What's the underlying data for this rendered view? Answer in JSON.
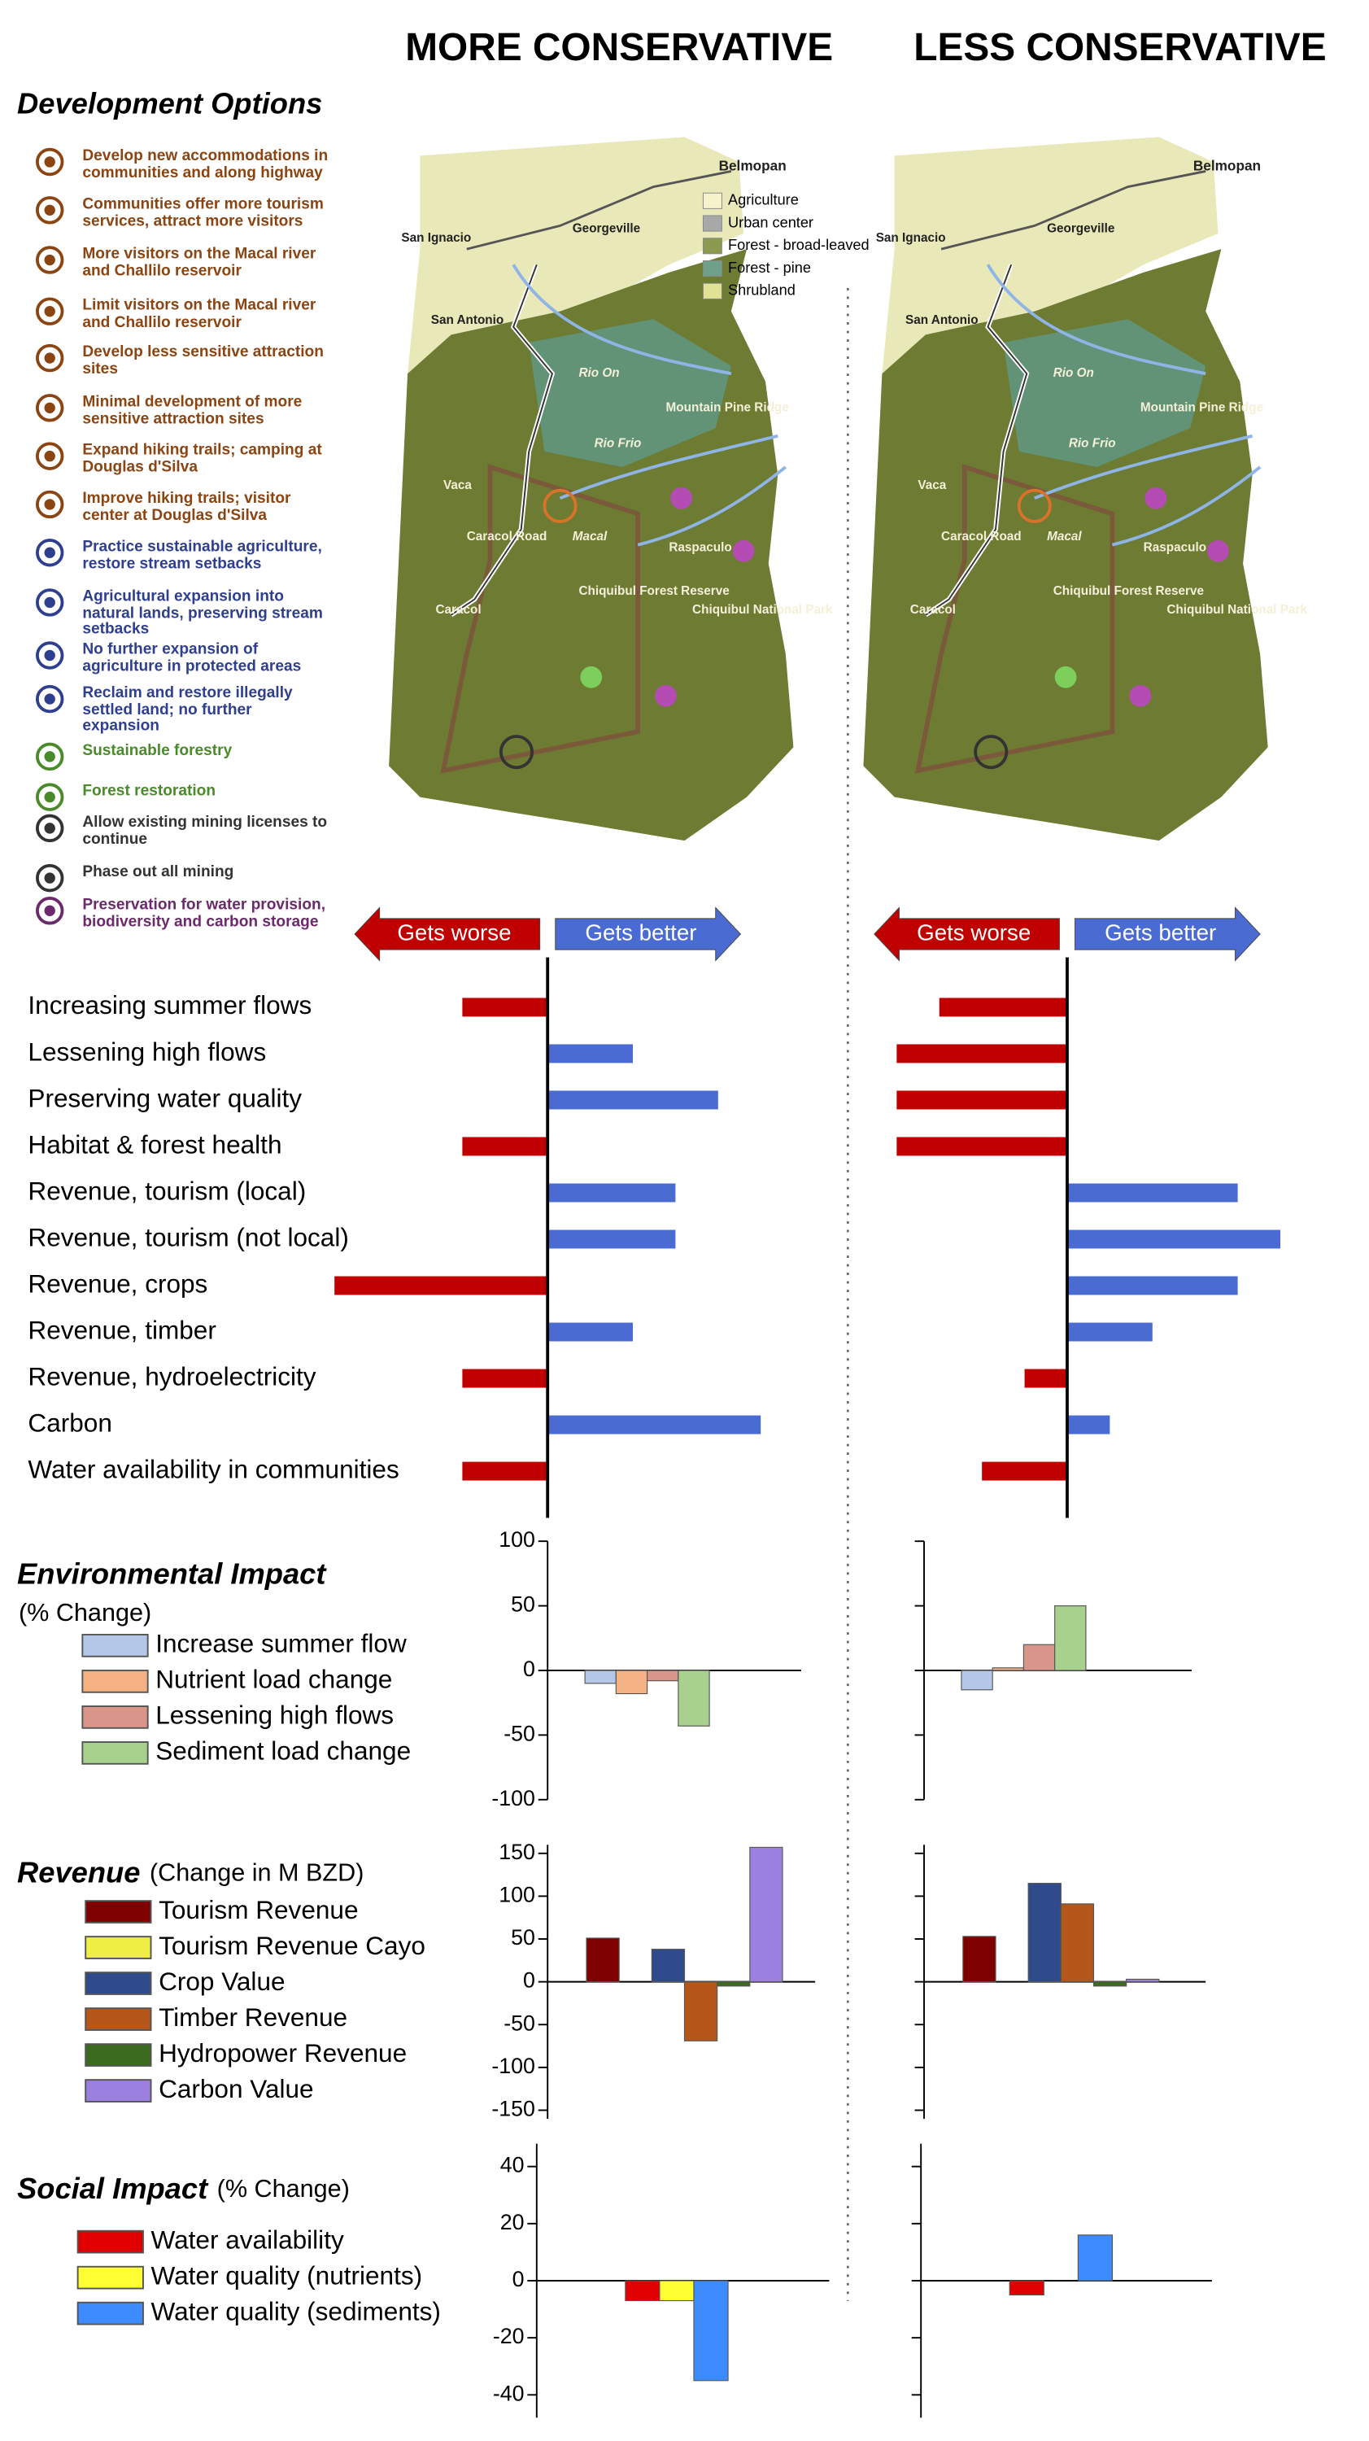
{
  "headers": {
    "more": "MORE CONSERVATIVE",
    "less": "LESS CONSERVATIVE"
  },
  "development_options": {
    "title": "Development Options",
    "items": [
      {
        "label": "Develop new accommodations in communities and along highway",
        "color": "#8b4513"
      },
      {
        "label": "Communities offer more tourism services, attract more visitors",
        "color": "#8b4513"
      },
      {
        "label": "More visitors on the Macal river and Challilo reservoir",
        "color": "#8b4513"
      },
      {
        "label": "Limit visitors on the Macal river and Challilo reservoir",
        "color": "#8b4513"
      },
      {
        "label": "Develop less sensitive attraction sites",
        "color": "#8b4513"
      },
      {
        "label": "Minimal development of more sensitive attraction sites",
        "color": "#8b4513"
      },
      {
        "label": "Expand hiking trails; camping at Douglas d'Silva",
        "color": "#8b4513"
      },
      {
        "label": "Improve hiking trails; visitor center at Douglas d'Silva",
        "color": "#8b4513"
      },
      {
        "label": "Practice sustainable agriculture, restore stream setbacks",
        "color": "#2f3f8f"
      },
      {
        "label": "Agricultural expansion into natural lands, preserving stream setbacks",
        "color": "#2f3f8f"
      },
      {
        "label": "No further expansion of agriculture in protected areas",
        "color": "#2f3f8f"
      },
      {
        "label": "Reclaim and restore illegally settled land; no further expansion",
        "color": "#2f3f8f"
      },
      {
        "label": "Sustainable forestry",
        "color": "#4a8a2a"
      },
      {
        "label": "Forest restoration",
        "color": "#4a8a2a"
      },
      {
        "label": "Allow existing mining licenses to continue",
        "color": "#333333"
      },
      {
        "label": "Phase out all mining",
        "color": "#333333"
      },
      {
        "label": "Preservation for water provision, biodiversity and carbon storage",
        "color": "#6b2a6b"
      }
    ]
  },
  "maps": {
    "place_labels": [
      "Belmopan",
      "San Ignacio",
      "Georgeville",
      "San Antonio",
      "Mountain Pine Ridge",
      "Vaca",
      "Caracol Road",
      "Caracol",
      "Chiquibul Forest Reserve",
      "Chiquibul National Park",
      "Raspaculo",
      "Macal",
      "Rio On",
      "Rio Frio"
    ],
    "land_cover": [
      {
        "label": "Agriculture",
        "color": "#f6f2cc"
      },
      {
        "label": "Urban center",
        "color": "#a8a8a8"
      },
      {
        "label": "Forest - broad-leaved",
        "color": "#8a9a4e"
      },
      {
        "label": "Forest - pine",
        "color": "#6fa08a"
      },
      {
        "label": "Shrubland",
        "color": "#e2e294"
      }
    ]
  },
  "chart_data": [
    {
      "type": "bar",
      "orientation": "horizontal",
      "direction_labels": [
        "Gets worse",
        "Gets better"
      ],
      "categories": [
        "Increasing summer flows",
        "Lessening high flows",
        "Preserving water quality",
        "Habitat & forest health",
        "Revenue, tourism (local)",
        "Revenue, tourism (not local)",
        "Revenue, crops",
        "Revenue, timber",
        "Revenue, hydroelectricity",
        "Carbon",
        "Water availability in communities"
      ],
      "xlim": [
        -5,
        5
      ],
      "negative_color": "#c00000",
      "positive_color": "#4a6bd1",
      "series": [
        {
          "values": [
            -2,
            2,
            4,
            -2,
            3,
            3,
            -5,
            2,
            -2,
            5,
            -2
          ]
        },
        {
          "values": [
            -3,
            -4,
            -4,
            -4,
            4,
            5,
            4,
            2,
            -1,
            1,
            -2
          ]
        }
      ]
    },
    {
      "type": "bar",
      "orientation": "vertical",
      "title": "Environmental Impact",
      "subtitle": "(% Change)",
      "ylim": [
        -100,
        100
      ],
      "yticks": [
        -100,
        -50,
        0,
        50,
        100
      ],
      "series": [
        {
          "name": "Increase summer flow",
          "color": "#b4c7e7",
          "values": [
            -10,
            -15
          ]
        },
        {
          "name": "Nutrient load change",
          "color": "#f4b183",
          "values": [
            -18,
            2
          ]
        },
        {
          "name": "Lessening high flows",
          "color": "#d9958a",
          "values": [
            -8,
            20
          ]
        },
        {
          "name": "Sediment load change",
          "color": "#a9d18e",
          "values": [
            -43,
            50
          ]
        }
      ]
    },
    {
      "type": "bar",
      "orientation": "vertical",
      "title": "Revenue",
      "subtitle": "(Change in M BZD)",
      "ylim": [
        -160,
        160
      ],
      "yticks": [
        -150,
        -100,
        -50,
        0,
        50,
        100,
        150
      ],
      "series": [
        {
          "name": "Tourism Revenue",
          "color": "#7f0000",
          "values": [
            51,
            53
          ]
        },
        {
          "name": "Tourism Revenue Cayo",
          "color": "#eeee44",
          "values": [
            0,
            0
          ]
        },
        {
          "name": "Crop Value",
          "color": "#2f4b8c",
          "values": [
            38,
            115
          ]
        },
        {
          "name": "Timber Revenue",
          "color": "#b5561a",
          "values": [
            -69,
            91
          ]
        },
        {
          "name": "Hydropower Revenue",
          "color": "#3a6b1e",
          "values": [
            -5,
            -5
          ]
        },
        {
          "name": "Carbon Value",
          "color": "#9b80e0",
          "values": [
            157,
            3
          ]
        }
      ]
    },
    {
      "type": "bar",
      "orientation": "vertical",
      "title": "Social Impact",
      "subtitle": "(% Change)",
      "ylim": [
        -48,
        48
      ],
      "yticks": [
        -40,
        -20,
        0,
        20,
        40
      ],
      "series": [
        {
          "name": "Water availability",
          "color": "#e00000",
          "values": [
            -7,
            -5
          ]
        },
        {
          "name": "Water quality (nutrients)",
          "color": "#ffff33",
          "values": [
            -7,
            0
          ]
        },
        {
          "name": "Water quality (sediments)",
          "color": "#3d8bff",
          "values": [
            -35,
            16
          ]
        }
      ]
    }
  ]
}
